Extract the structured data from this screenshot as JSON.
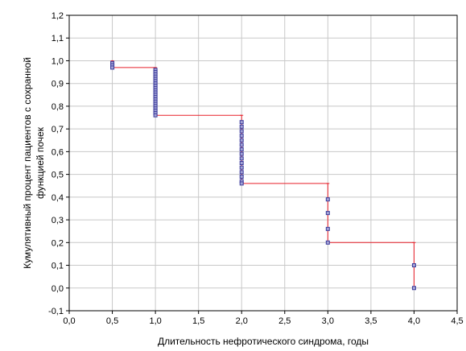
{
  "chart_data": {
    "type": "step-survival",
    "title": "",
    "xlabel": "Длительность нефротического синдрома, годы",
    "ylabel_lines": [
      "Кумулятивный процент пациентов с сохранной",
      "функцией почек"
    ],
    "xlim": [
      0.0,
      4.5
    ],
    "ylim": [
      -0.1,
      1.2
    ],
    "xticks": [
      "0,0",
      "0,5",
      "1,0",
      "1,5",
      "2,0",
      "2,5",
      "3,0",
      "3,5",
      "4,0",
      "4,5"
    ],
    "yticks": [
      "-0,1",
      "0,0",
      "0,1",
      "0,2",
      "0,3",
      "0,4",
      "0,5",
      "0,6",
      "0,7",
      "0,8",
      "0,9",
      "1,0",
      "1,1",
      "1,2"
    ],
    "grid": true,
    "colors": {
      "step_line": "#e8202a",
      "marker_stroke": "#3c3c9c",
      "marker_fill": "#a5a5d6",
      "grid": "#c8c8c8",
      "axis": "#000000"
    },
    "step_function": {
      "x": [
        0.5,
        1.0,
        2.0,
        3.0,
        4.0
      ],
      "y_before": [
        1.0,
        0.97,
        0.76,
        0.46,
        0.2
      ],
      "y_after": [
        0.97,
        0.76,
        0.46,
        0.2,
        0.0
      ]
    },
    "censored_points": [
      {
        "x": 0.5,
        "y": 0.99
      },
      {
        "x": 0.5,
        "y": 0.98
      },
      {
        "x": 0.5,
        "y": 0.97
      },
      {
        "x": 1.0,
        "y": 0.96
      },
      {
        "x": 1.0,
        "y": 0.95
      },
      {
        "x": 1.0,
        "y": 0.94
      },
      {
        "x": 1.0,
        "y": 0.93
      },
      {
        "x": 1.0,
        "y": 0.92
      },
      {
        "x": 1.0,
        "y": 0.91
      },
      {
        "x": 1.0,
        "y": 0.9
      },
      {
        "x": 1.0,
        "y": 0.89
      },
      {
        "x": 1.0,
        "y": 0.88
      },
      {
        "x": 1.0,
        "y": 0.87
      },
      {
        "x": 1.0,
        "y": 0.86
      },
      {
        "x": 1.0,
        "y": 0.85
      },
      {
        "x": 1.0,
        "y": 0.84
      },
      {
        "x": 1.0,
        "y": 0.83
      },
      {
        "x": 1.0,
        "y": 0.82
      },
      {
        "x": 1.0,
        "y": 0.81
      },
      {
        "x": 1.0,
        "y": 0.8
      },
      {
        "x": 1.0,
        "y": 0.79
      },
      {
        "x": 1.0,
        "y": 0.78
      },
      {
        "x": 1.0,
        "y": 0.77
      },
      {
        "x": 1.0,
        "y": 0.76
      },
      {
        "x": 2.0,
        "y": 0.73
      },
      {
        "x": 2.0,
        "y": 0.71
      },
      {
        "x": 2.0,
        "y": 0.69
      },
      {
        "x": 2.0,
        "y": 0.67
      },
      {
        "x": 2.0,
        "y": 0.65
      },
      {
        "x": 2.0,
        "y": 0.63
      },
      {
        "x": 2.0,
        "y": 0.61
      },
      {
        "x": 2.0,
        "y": 0.59
      },
      {
        "x": 2.0,
        "y": 0.57
      },
      {
        "x": 2.0,
        "y": 0.55
      },
      {
        "x": 2.0,
        "y": 0.53
      },
      {
        "x": 2.0,
        "y": 0.51
      },
      {
        "x": 2.0,
        "y": 0.49
      },
      {
        "x": 2.0,
        "y": 0.47
      },
      {
        "x": 2.0,
        "y": 0.46
      },
      {
        "x": 3.0,
        "y": 0.39
      },
      {
        "x": 3.0,
        "y": 0.33
      },
      {
        "x": 3.0,
        "y": 0.26
      },
      {
        "x": 3.0,
        "y": 0.2
      },
      {
        "x": 4.0,
        "y": 0.1
      },
      {
        "x": 4.0,
        "y": 0.0
      }
    ]
  }
}
